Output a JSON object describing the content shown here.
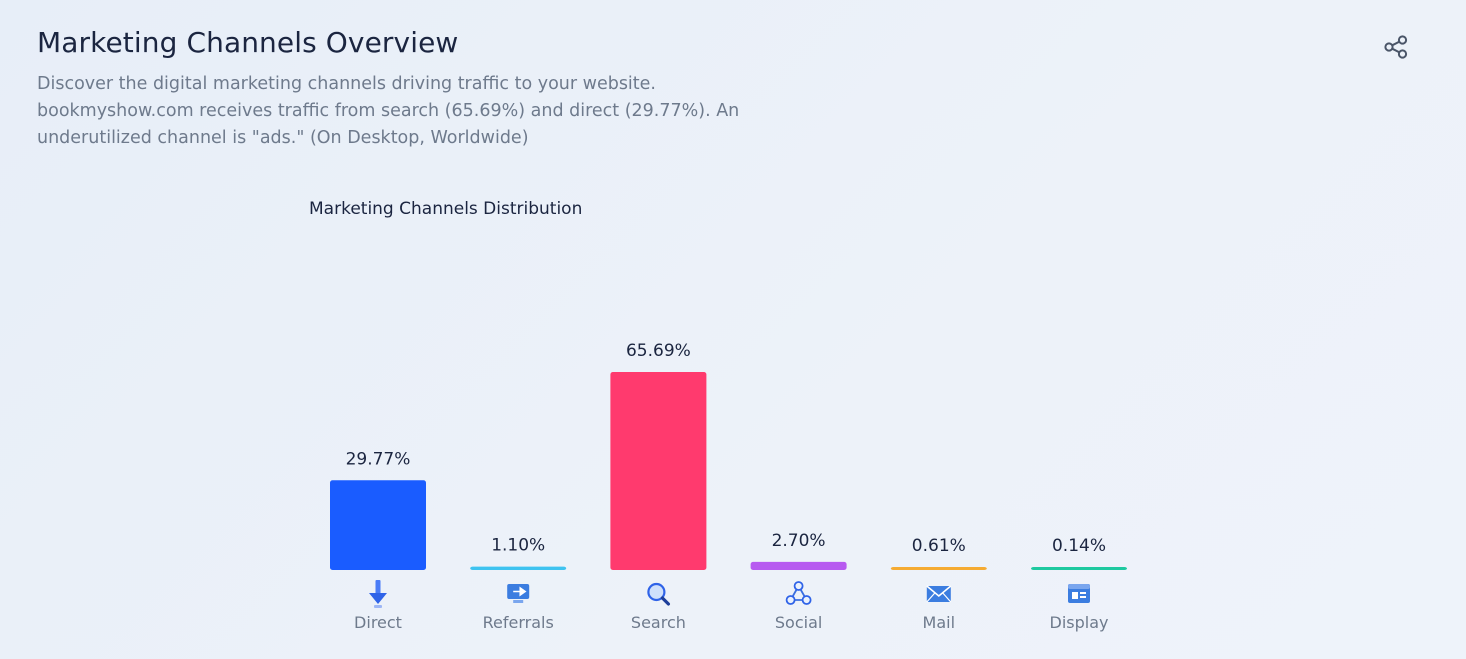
{
  "header": {
    "title": "Marketing Channels Overview",
    "description": "Discover the digital marketing channels driving traffic to your website. bookmyshow.com receives traffic from search (65.69%) and direct (29.77%). An underutilized channel is \"ads.\" (On Desktop, Worldwide)",
    "share_icon": "share-icon"
  },
  "chart_data": {
    "type": "bar",
    "title": "Marketing Channels Distribution",
    "xlabel": "",
    "ylabel": "",
    "ylim": [
      0,
      65.69
    ],
    "grid": false,
    "categories": [
      "Direct",
      "Referrals",
      "Search",
      "Social",
      "Mail",
      "Display"
    ],
    "values": [
      29.77,
      1.1,
      65.69,
      2.7,
      0.61,
      0.14
    ],
    "value_labels": [
      "29.77%",
      "1.10%",
      "65.69%",
      "2.70%",
      "0.61%",
      "0.14%"
    ],
    "colors": [
      "#1a5cff",
      "#3ec3f0",
      "#ff3a6e",
      "#b75af0",
      "#f5ab32",
      "#1ec9a0"
    ],
    "icons": [
      "arrow-down-icon",
      "referral-screen-icon",
      "magnifier-icon",
      "social-network-icon",
      "envelope-icon",
      "display-window-icon"
    ]
  }
}
